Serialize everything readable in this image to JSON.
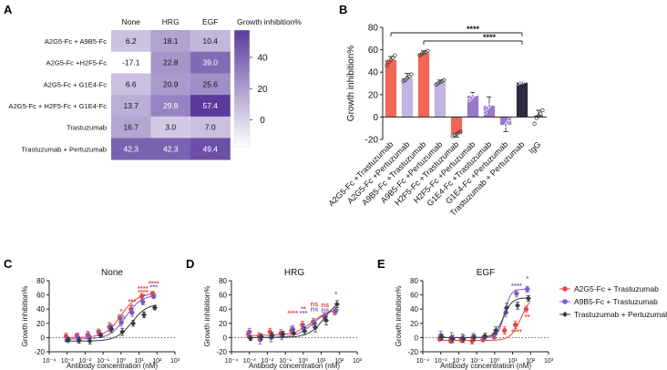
{
  "colors": {
    "red": "#e8453c",
    "purple": "#7b5cc4",
    "black": "#3a3a3a",
    "bar_red": "#f26655",
    "bar_lavender": "#c1b3e3",
    "bar_purple": "#9a78cc",
    "bar_dark": "#2f2a3e",
    "heat_low": "#ffffff",
    "heat_high": "#5a3a9c"
  },
  "chart_data": [
    {
      "panel": "A",
      "type": "heatmap",
      "title": "",
      "columns": [
        "None",
        "HRG",
        "EGF"
      ],
      "rows": [
        "A2G5-Fc + A9B5-Fc",
        "A2G5-Fc +H2F5-Fc",
        "A2G5-Fc + G1E4-Fc",
        "A2G5-Fc + H2F5-Fc + G1E4-Fc",
        "Trastuzumab",
        "Trastuzumab + Pertuzumab"
      ],
      "values": [
        [
          6.2,
          18.1,
          10.4
        ],
        [
          -17.1,
          22.8,
          39.0
        ],
        [
          6.6,
          20.9,
          25.6
        ],
        [
          13.7,
          29.8,
          57.4
        ],
        [
          16.7,
          3.0,
          7.0
        ],
        [
          42.3,
          42.3,
          49.4
        ]
      ],
      "value_labels": [
        [
          "6.2",
          "18.1",
          "10.4"
        ],
        [
          "-17.1",
          "22.8",
          "39.0"
        ],
        [
          "6.6",
          "20.9",
          "25.6"
        ],
        [
          "13.7",
          "29.8",
          "57.4"
        ],
        [
          "16.7",
          "3.0",
          "7.0"
        ],
        [
          "42.3",
          "42.3",
          "49.4"
        ]
      ],
      "colorbar_label": "Growth inhibition%",
      "colorbar_ticks": [
        "40",
        "20",
        "0"
      ],
      "colorbar_tick_values": [
        40,
        20,
        0
      ],
      "colorbar_range": [
        -17.1,
        57.4
      ]
    },
    {
      "panel": "B",
      "type": "bar",
      "ylabel": "Growth inhibition%",
      "ylim": [
        -20,
        80
      ],
      "yticks": [
        "80",
        "60",
        "40",
        "20",
        "0",
        "-20"
      ],
      "ytick_values": [
        80,
        60,
        40,
        20,
        0,
        -20
      ],
      "categories": [
        "A2G5-Fc +Trastuzumab",
        "A2G5-Fc +Pertuzumab",
        "A9B5-Fc +Trastuzumab",
        "A9B5-Fc +Pertuzumab",
        "H2F5-Fc +Trastuzumab",
        "H2F5-Fc +Pertuzumab",
        "G1E4-Fc +Trastuzumab",
        "G1E4-Fc +Pertuzumab",
        "Trastuzumab + Pertuzumab",
        "IgG"
      ],
      "values": [
        51,
        35,
        57,
        31,
        -15,
        19,
        10,
        -7,
        31,
        1
      ],
      "errors": [
        3,
        4,
        2,
        2,
        3,
        3,
        8,
        6,
        1,
        5
      ],
      "bar_colors": [
        "bar_red",
        "bar_lavender",
        "bar_red",
        "bar_lavender",
        "bar_red",
        "bar_purple",
        "bar_purple",
        "bar_purple",
        "bar_dark",
        "none"
      ],
      "points": [
        [
          46,
          49,
          51,
          53,
          55
        ],
        [
          32,
          33,
          35,
          36,
          38
        ],
        [
          55,
          56,
          57,
          58,
          59
        ],
        [
          29,
          30,
          31,
          32,
          33
        ],
        [
          -17,
          -16,
          -15,
          -14,
          -13
        ],
        [
          15,
          17,
          19,
          20,
          22
        ],
        [
          4,
          8,
          10,
          12,
          18
        ],
        [
          -12,
          -9,
          -7,
          -5,
          -2
        ],
        [
          30,
          31,
          31,
          32,
          32
        ],
        [
          -6,
          -1,
          1,
          3,
          6
        ]
      ],
      "significance": [
        {
          "label": "****",
          "from": 0,
          "to": 8
        },
        {
          "label": "****",
          "from": 2,
          "to": 8
        }
      ]
    },
    {
      "panel": "C",
      "type": "line",
      "title": "None",
      "xlabel": "Antibody concentration  (nM)",
      "ylabel": "Growth inhibition%",
      "xscale": "log",
      "xlim": [
        0.0001,
        1000
      ],
      "ylim": [
        -20,
        80
      ],
      "xticks": [
        "10⁻⁴",
        "10⁻³",
        "10⁻²",
        "10⁻¹",
        "10⁰",
        "10¹",
        "10²",
        "10³"
      ],
      "xtick_values": [
        0.0001,
        0.001,
        0.01,
        0.1,
        1,
        10,
        100,
        1000
      ],
      "yticks": [
        "80",
        "60",
        "40",
        "20",
        "0",
        "-20"
      ],
      "ytick_values": [
        80,
        60,
        40,
        20,
        0,
        -20
      ],
      "x": [
        0.001,
        0.004,
        0.016,
        0.064,
        0.256,
        1.024,
        4.096,
        16.384,
        65.536
      ],
      "series": [
        {
          "name": "A2G5-Fc + Trastuzumab",
          "color": "red",
          "values": [
            2,
            3,
            4,
            8,
            15,
            27,
            40,
            58,
            62
          ],
          "errors": [
            4,
            3,
            5,
            4,
            6,
            5,
            5,
            4,
            3
          ],
          "fit": [
            0,
            62,
            1.0,
            1.0
          ]
        },
        {
          "name": "A9B5-Fc + Trastuzumab",
          "color": "purple",
          "values": [
            -3,
            0,
            2,
            5,
            14,
            21,
            35,
            50,
            58
          ],
          "errors": [
            4,
            6,
            5,
            5,
            5,
            5,
            5,
            4,
            3
          ],
          "fit": [
            -2,
            60,
            1.8,
            1.0
          ]
        },
        {
          "name": "Trastuzumab + Pertuzumab",
          "color": "black",
          "values": [
            -3,
            -4,
            -5,
            3,
            12,
            8,
            20,
            32,
            42
          ],
          "errors": [
            3,
            4,
            4,
            3,
            5,
            5,
            4,
            4,
            3
          ],
          "fit": [
            -5,
            48,
            4.0,
            1.0
          ]
        }
      ],
      "annotations": [
        {
          "text": "*",
          "x": 1.024,
          "y": 34,
          "color": "red"
        },
        {
          "text": "ns",
          "x": 1.024,
          "y": 27,
          "color": "purple"
        },
        {
          "text": "***",
          "x": 4.096,
          "y": 47,
          "color": "red"
        },
        {
          "text": "*",
          "x": 4.096,
          "y": 41,
          "color": "purple"
        },
        {
          "text": "****",
          "x": 16.384,
          "y": 66,
          "color": "red"
        },
        {
          "text": "****",
          "x": 16.384,
          "y": 61,
          "color": "red"
        },
        {
          "text": "**",
          "x": 16.384,
          "y": 55,
          "color": "purple"
        },
        {
          "text": "****",
          "x": 65.536,
          "y": 73,
          "color": "red"
        },
        {
          "text": "***",
          "x": 65.536,
          "y": 68,
          "color": "purple"
        }
      ]
    },
    {
      "panel": "D",
      "type": "line",
      "title": "HRG",
      "xlabel": "Antibody concentration  (nM)",
      "ylabel": "Growth inhibition%",
      "xscale": "log",
      "xlim": [
        0.0001,
        1000
      ],
      "ylim": [
        -20,
        80
      ],
      "xticks": [
        "10⁻⁴",
        "10⁻³",
        "10⁻²",
        "10⁻¹",
        "10⁰",
        "10¹",
        "10²",
        "10³"
      ],
      "xtick_values": [
        0.0001,
        0.001,
        0.01,
        0.1,
        1,
        10,
        100,
        1000
      ],
      "yticks": [
        "80",
        "60",
        "40",
        "20",
        "0",
        "-20"
      ],
      "ytick_values": [
        80,
        60,
        40,
        20,
        0,
        -20
      ],
      "x": [
        0.001,
        0.004,
        0.016,
        0.064,
        0.256,
        1.024,
        4.096,
        16.384,
        65.536
      ],
      "series": [
        {
          "name": "A2G5-Fc + Trastuzumab",
          "color": "red",
          "values": [
            5,
            2,
            8,
            6,
            10,
            18,
            22,
            30,
            36
          ],
          "errors": [
            4,
            5,
            5,
            5,
            5,
            5,
            5,
            5,
            4
          ],
          "fit": [
            3,
            40,
            3.0,
            0.9
          ]
        },
        {
          "name": "A9B5-Fc + Trastuzumab",
          "color": "purple",
          "values": [
            8,
            -3,
            0,
            2,
            12,
            14,
            20,
            28,
            38
          ],
          "errors": [
            5,
            6,
            6,
            5,
            5,
            5,
            5,
            5,
            4
          ],
          "fit": [
            0,
            42,
            4.0,
            0.9
          ]
        },
        {
          "name": "Trastuzumab + Pertuzumab",
          "color": "black",
          "values": [
            -1,
            1,
            3,
            5,
            6,
            9,
            14,
            24,
            47
          ],
          "errors": [
            3,
            4,
            4,
            4,
            5,
            5,
            6,
            6,
            5
          ],
          "fit": [
            0,
            55,
            15.0,
            1.0
          ]
        }
      ],
      "annotations": [
        {
          "text": "****",
          "x": 0.256,
          "y": 31,
          "color": "red"
        },
        {
          "text": "**",
          "x": 1.024,
          "y": 37,
          "color": "red"
        },
        {
          "text": "***",
          "x": 1.024,
          "y": 31,
          "color": "purple"
        },
        {
          "text": "ns",
          "x": 4.096,
          "y": 44,
          "color": "red"
        },
        {
          "text": "ns",
          "x": 4.096,
          "y": 37,
          "color": "purple"
        },
        {
          "text": "ns",
          "x": 16.384,
          "y": 43,
          "color": "red"
        },
        {
          "text": "ns",
          "x": 16.384,
          "y": 36,
          "color": "purple"
        },
        {
          "text": "*",
          "x": 65.536,
          "y": 58,
          "color": "red"
        }
      ]
    },
    {
      "panel": "E",
      "type": "line",
      "title": "EGF",
      "xlabel": "Antibody concentration  (nM)",
      "ylabel": "Growth inhibition%",
      "xscale": "log",
      "xlim": [
        0.0001,
        1000
      ],
      "ylim": [
        -20,
        80
      ],
      "xticks": [
        "10⁻⁴",
        "10⁻³",
        "10⁻²",
        "10⁻¹",
        "10⁰",
        "10¹",
        "10²",
        "10³"
      ],
      "xtick_values": [
        0.0001,
        0.001,
        0.01,
        0.1,
        1,
        10,
        100,
        1000
      ],
      "yticks": [
        "80",
        "60",
        "40",
        "20",
        "0",
        "-20"
      ],
      "ytick_values": [
        80,
        60,
        40,
        20,
        0,
        -20
      ],
      "x": [
        0.001,
        0.004,
        0.016,
        0.064,
        0.256,
        1.024,
        4.096,
        16.384,
        65.536
      ],
      "series": [
        {
          "name": "A2G5-Fc + Trastuzumab",
          "color": "red",
          "values": [
            -2,
            -4,
            -3,
            -5,
            -3,
            2,
            10,
            18,
            40
          ],
          "errors": [
            3,
            4,
            3,
            4,
            3,
            4,
            5,
            5,
            4
          ],
          "fit": [
            -4,
            60,
            30.0,
            1.5
          ]
        },
        {
          "name": "A9B5-Fc + Trastuzumab",
          "color": "purple",
          "values": [
            3,
            0,
            -1,
            1,
            0,
            5,
            35,
            62,
            68
          ],
          "errors": [
            6,
            7,
            6,
            5,
            4,
            6,
            6,
            5,
            4
          ],
          "fit": [
            0,
            68,
            3.5,
            2.5
          ]
        },
        {
          "name": "Trastuzumab + Pertuzumab",
          "color": "black",
          "values": [
            1,
            -2,
            -2,
            0,
            2,
            10,
            42,
            45,
            55
          ],
          "errors": [
            4,
            5,
            5,
            4,
            4,
            5,
            6,
            5,
            4
          ],
          "fit": [
            0,
            56,
            3.0,
            1.8
          ]
        }
      ],
      "annotations": [
        {
          "text": "****",
          "x": 16.384,
          "y": 70,
          "color": "purple"
        },
        {
          "text": "*",
          "x": 65.536,
          "y": 80,
          "color": "purple"
        },
        {
          "text": "**",
          "x": 65.536,
          "y": 26,
          "color": "red"
        },
        {
          "text": "****",
          "x": 16.384,
          "y": 5,
          "color": "red"
        }
      ],
      "legend_position": "right"
    }
  ],
  "panel_labels": {
    "A": "A",
    "B": "B",
    "C": "C",
    "D": "D",
    "E": "E"
  },
  "legend": [
    {
      "label": "A2G5-Fc + Trastuzumab",
      "color": "red",
      "marker": "circle"
    },
    {
      "label": "A9B5-Fc + Trastuzumab",
      "color": "purple",
      "marker": "circle"
    },
    {
      "label": "Trastuzumab + Pertuzumab",
      "color": "black",
      "marker": "diamond"
    }
  ]
}
